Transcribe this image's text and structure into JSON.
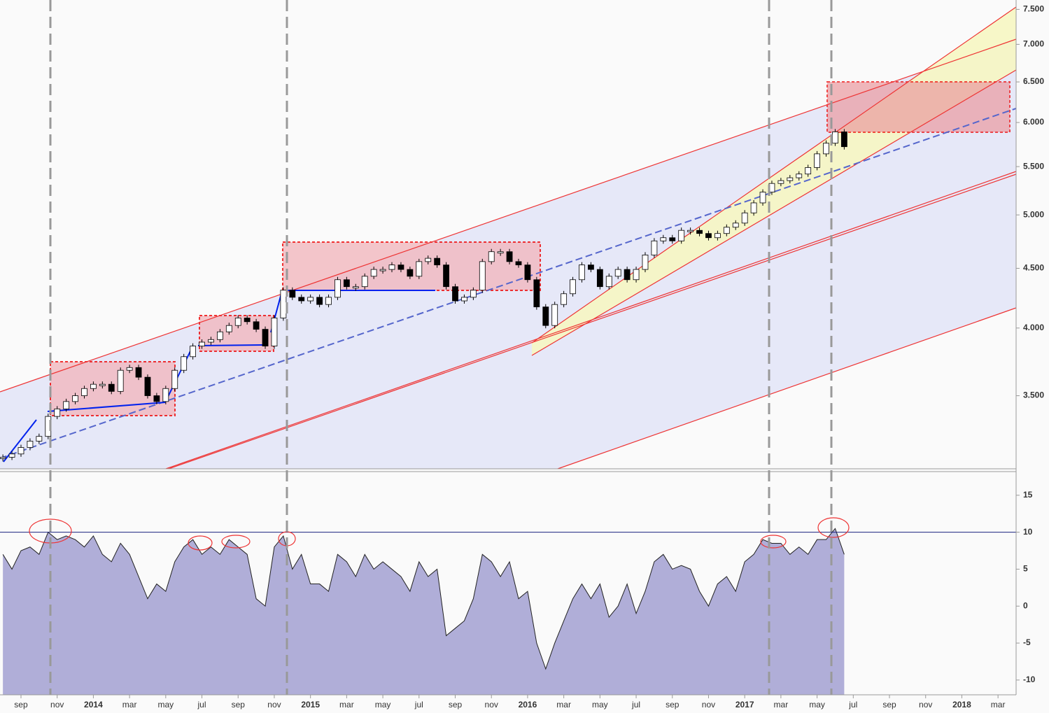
{
  "chart_data": [
    {
      "type": "candlestick",
      "log_scale": true,
      "up_color": "#ffffff",
      "down_color": "#000000",
      "xlim": [
        -1.16,
        55
      ],
      "ylim": [
        3.03,
        7.64
      ],
      "yticks": [
        {
          "value": 3.5,
          "label": "3.500"
        },
        {
          "value": 4.0,
          "label": "4.000"
        },
        {
          "value": 4.5,
          "label": "4.500"
        },
        {
          "value": 5.0,
          "label": "5.000"
        },
        {
          "value": 5.5,
          "label": "5.500"
        },
        {
          "value": 6.0,
          "label": "6.000"
        },
        {
          "value": 6.5,
          "label": "6.500"
        },
        {
          "value": 7.0,
          "label": "7.000"
        },
        {
          "value": 7.5,
          "label": "7.500"
        }
      ],
      "x": [
        -1,
        -0.5,
        0,
        0.5,
        1,
        1.5,
        2,
        2.5,
        3,
        3.5,
        4,
        4.5,
        5,
        5.5,
        6,
        6.5,
        7,
        7.5,
        8,
        8.5,
        9,
        9.5,
        10,
        10.5,
        11,
        11.5,
        12,
        12.5,
        13,
        13.5,
        14,
        14.5,
        15,
        15.5,
        16,
        16.5,
        17,
        17.5,
        18,
        18.5,
        19,
        19.5,
        20,
        20.5,
        21,
        21.5,
        22,
        22.5,
        23,
        23.5,
        24,
        24.5,
        25,
        25.5,
        26,
        26.5,
        27,
        27.5,
        28,
        28.5,
        29,
        29.5,
        30,
        30.5,
        31,
        31.5,
        32,
        32.5,
        33,
        33.5,
        34,
        34.5,
        35,
        35.5,
        36,
        36.5,
        37,
        37.5,
        38,
        38.5,
        39,
        39.5,
        40,
        40.5,
        41,
        41.5,
        42,
        42.5,
        43,
        43.5,
        44,
        44.5,
        45,
        45.5
      ],
      "values": [
        3.1,
        3.12,
        3.16,
        3.2,
        3.23,
        3.36,
        3.41,
        3.46,
        3.5,
        3.55,
        3.58,
        3.58,
        3.53,
        3.68,
        3.7,
        3.63,
        3.5,
        3.46,
        3.55,
        3.68,
        3.78,
        3.86,
        3.89,
        3.91,
        3.97,
        4.02,
        4.08,
        4.05,
        3.99,
        3.86,
        4.08,
        4.31,
        4.25,
        4.22,
        4.25,
        4.19,
        4.25,
        4.4,
        4.34,
        4.34,
        4.43,
        4.49,
        4.49,
        4.53,
        4.49,
        4.43,
        4.56,
        4.59,
        4.53,
        4.34,
        4.22,
        4.25,
        4.31,
        4.56,
        4.65,
        4.65,
        4.56,
        4.53,
        4.4,
        4.17,
        4.02,
        4.19,
        4.28,
        4.4,
        4.53,
        4.49,
        4.34,
        4.43,
        4.49,
        4.4,
        4.49,
        4.62,
        4.75,
        4.78,
        4.75,
        4.85,
        4.85,
        4.82,
        4.78,
        4.82,
        4.88,
        4.92,
        5.02,
        5.12,
        5.23,
        5.32,
        5.35,
        5.38,
        5.42,
        5.49,
        5.64,
        5.76,
        5.89,
        5.72
      ]
    },
    {
      "type": "area",
      "color": "#b0aed8",
      "reference_line": 10,
      "xlim": [
        -1.16,
        55
      ],
      "ylim": [
        -12,
        18.2
      ],
      "yticks": [
        -10,
        -5,
        0,
        5,
        10,
        15
      ],
      "xticks": [
        {
          "value": 0,
          "label": "sep"
        },
        {
          "value": 2,
          "label": "nov"
        },
        {
          "value": 4,
          "label": "2014"
        },
        {
          "value": 6,
          "label": "mar"
        },
        {
          "value": 8,
          "label": "may"
        },
        {
          "value": 10,
          "label": "jul"
        },
        {
          "value": 12,
          "label": "sep"
        },
        {
          "value": 14,
          "label": "nov"
        },
        {
          "value": 16,
          "label": "2015"
        },
        {
          "value": 18,
          "label": "mar"
        },
        {
          "value": 20,
          "label": "may"
        },
        {
          "value": 22,
          "label": "jul"
        },
        {
          "value": 24,
          "label": "sep"
        },
        {
          "value": 26,
          "label": "nov"
        },
        {
          "value": 28,
          "label": "2016"
        },
        {
          "value": 30,
          "label": "mar"
        },
        {
          "value": 32,
          "label": "may"
        },
        {
          "value": 34,
          "label": "jul"
        },
        {
          "value": 36,
          "label": "sep"
        },
        {
          "value": 38,
          "label": "nov"
        },
        {
          "value": 40,
          "label": "2017"
        },
        {
          "value": 42,
          "label": "mar"
        },
        {
          "value": 44,
          "label": "may"
        },
        {
          "value": 46,
          "label": "jul"
        },
        {
          "value": 48,
          "label": "sep"
        },
        {
          "value": 50,
          "label": "nov"
        },
        {
          "value": 52,
          "label": "2018"
        },
        {
          "value": 54,
          "label": "mar"
        }
      ],
      "x": [
        -1,
        -0.5,
        0,
        0.5,
        1,
        1.5,
        2,
        2.5,
        3,
        3.5,
        4,
        4.5,
        5,
        5.5,
        6,
        6.5,
        7,
        7.5,
        8,
        8.5,
        9,
        9.5,
        10,
        10.5,
        11,
        11.5,
        12,
        12.5,
        13,
        13.5,
        14,
        14.5,
        15,
        15.5,
        16,
        16.5,
        17,
        17.5,
        18,
        18.5,
        19,
        19.5,
        20,
        20.5,
        21,
        21.5,
        22,
        22.5,
        23,
        23.5,
        24,
        24.5,
        25,
        25.5,
        26,
        26.5,
        27,
        27.5,
        28,
        28.5,
        29,
        29.5,
        30,
        30.5,
        31,
        31.5,
        32,
        32.5,
        33,
        33.5,
        34,
        34.5,
        35,
        35.5,
        36,
        36.5,
        37,
        37.5,
        38,
        38.5,
        39,
        39.5,
        40,
        40.5,
        41,
        41.5,
        42,
        42.5,
        43,
        43.5,
        44,
        44.5,
        45,
        45.5
      ],
      "values": [
        7,
        5,
        7.5,
        8,
        7,
        10,
        9,
        9.5,
        9,
        8,
        9.5,
        7,
        6,
        8.5,
        7,
        4,
        1,
        3,
        2,
        6,
        8,
        9,
        7,
        8,
        7,
        9,
        8,
        7,
        1,
        0,
        8,
        9.5,
        5,
        7,
        3,
        3,
        2,
        7,
        6,
        4,
        7,
        5,
        6,
        5,
        4,
        2,
        6,
        4,
        5,
        -4,
        -3,
        -2,
        1,
        7,
        6,
        4,
        6,
        1,
        2,
        -5,
        -8.5,
        -5,
        -2,
        1,
        3,
        1,
        3,
        -1.5,
        0,
        3,
        -1,
        2,
        6,
        7,
        5,
        5.5,
        5,
        2,
        0,
        3,
        4,
        2,
        6,
        7,
        9,
        8.5,
        8.5,
        7,
        8,
        7,
        9,
        9,
        10.5,
        7
      ]
    }
  ]
}
